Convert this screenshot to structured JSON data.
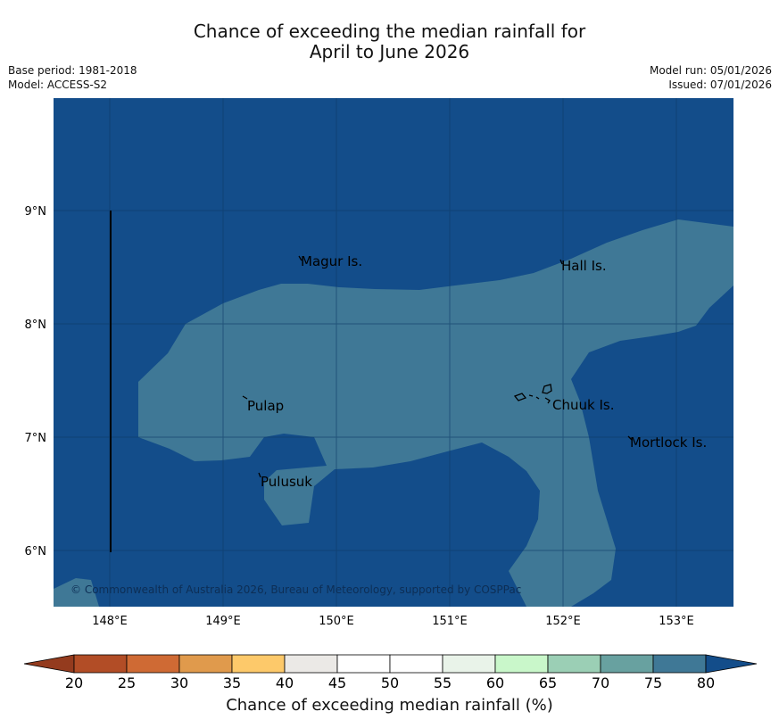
{
  "title": {
    "line1": "Chance of exceeding the median rainfall for",
    "line2": "April to June 2026"
  },
  "meta": {
    "base_period": "Base period: 1981-2018",
    "model": "Model: ACCESS-S2",
    "model_run": "Model run: 05/01/2026",
    "issued": "Issued: 07/01/2026"
  },
  "map": {
    "lon_labels": [
      "148°E",
      "149°E",
      "150°E",
      "151°E",
      "152°E",
      "153°E"
    ],
    "lat_labels": [
      "9°N",
      "8°N",
      "7°N",
      "6°N"
    ],
    "places": [
      {
        "name": "Magur Is.",
        "key": "magur"
      },
      {
        "name": "Hall Is.",
        "key": "hall"
      },
      {
        "name": "Pulap",
        "key": "pulap"
      },
      {
        "name": "Chuuk Is.",
        "key": "chuuk"
      },
      {
        "name": "Mortlock Is.",
        "key": "mortlock"
      },
      {
        "name": "Pulusuk",
        "key": "pulusuk"
      }
    ],
    "copyright": "© Commonwealth of Australia 2026, Bureau of Meteorology, supported by COSPPac",
    "colors": {
      "above_80": "#134d8a",
      "range_75_80": "#3f7896",
      "grid": "#0e3a66",
      "coast": "#000000"
    }
  },
  "colorbar": {
    "label": "Chance of exceeding median rainfall (%)",
    "ticks": [
      "20",
      "25",
      "30",
      "35",
      "40",
      "45",
      "50",
      "55",
      "60",
      "65",
      "70",
      "75",
      "80"
    ],
    "colors": [
      "#b24d26",
      "#cf6a34",
      "#e09a4c",
      "#fdc96a",
      "#ebe9e6",
      "#ffffff",
      "#ffffff",
      "#e9f3e9",
      "#c9f7ca",
      "#9bcfb5",
      "#68a1a0",
      "#3f7896"
    ],
    "below_color": "#943b1e",
    "above_color": "#134d8a"
  }
}
